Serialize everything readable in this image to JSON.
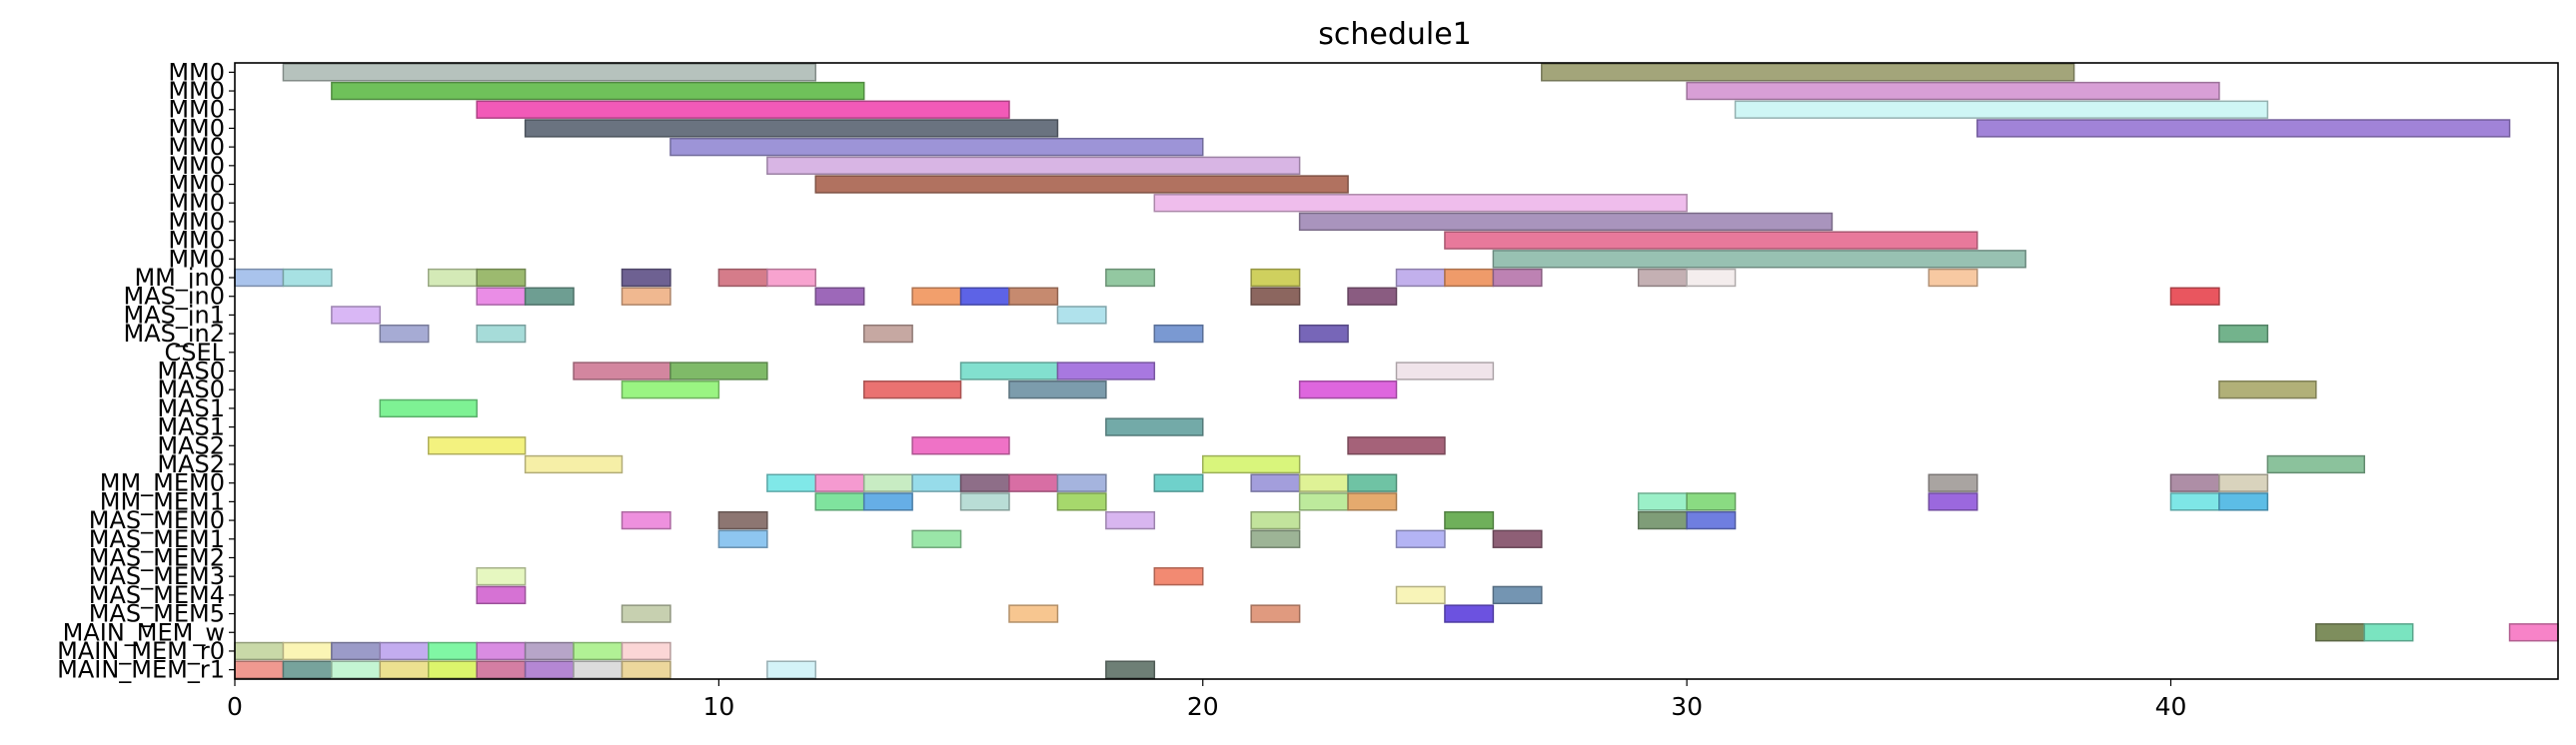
{
  "chart_data": {
    "type": "gantt",
    "title": "schedule1",
    "xlabel": "",
    "ylabel": "",
    "xlim": [
      0,
      48
    ],
    "x_ticks": [
      0,
      10,
      20,
      30,
      40
    ],
    "grid": false,
    "rows": [
      "MM0",
      "MM0",
      "MM0",
      "MM0",
      "MM0",
      "MM0",
      "MM0",
      "MM0",
      "MM0",
      "MM0",
      "MM0",
      "MM_in0",
      "MAS_in0",
      "MAS_in1",
      "MAS_in2",
      "CSEL",
      "MAS0",
      "MAS0",
      "MAS1",
      "MAS1",
      "MAS2",
      "MAS2",
      "MM_MEM0",
      "MM_MEM1",
      "MAS_MEM0",
      "MAS_MEM1",
      "MAS_MEM2",
      "MAS_MEM3",
      "MAS_MEM4",
      "MAS_MEM5",
      "MAIN_MEM_w",
      "MAIN_MEM_r0",
      "MAIN_MEM_r1"
    ],
    "tasks": [
      {
        "row": 0,
        "start": 1,
        "end": 12,
        "color": "#b6c2bd"
      },
      {
        "row": 0,
        "start": 27,
        "end": 38,
        "color": "#a3a57a"
      },
      {
        "row": 1,
        "start": 2,
        "end": 13,
        "color": "#6fc15a"
      },
      {
        "row": 1,
        "start": 30,
        "end": 41,
        "color": "#d89fd6"
      },
      {
        "row": 2,
        "start": 5,
        "end": 16,
        "color": "#f25ab8"
      },
      {
        "row": 2,
        "start": 31,
        "end": 42,
        "color": "#cff6f5"
      },
      {
        "row": 3,
        "start": 6,
        "end": 17,
        "color": "#6a7380"
      },
      {
        "row": 3,
        "start": 36,
        "end": 47,
        "color": "#a183d8"
      },
      {
        "row": 4,
        "start": 9,
        "end": 20,
        "color": "#9d94d7"
      },
      {
        "row": 5,
        "start": 11,
        "end": 22,
        "color": "#d8b5e4"
      },
      {
        "row": 6,
        "start": 12,
        "end": 23,
        "color": "#b17260"
      },
      {
        "row": 7,
        "start": 19,
        "end": 30,
        "color": "#efbdec"
      },
      {
        "row": 8,
        "start": 22,
        "end": 33,
        "color": "#a994bd"
      },
      {
        "row": 9,
        "start": 25,
        "end": 36,
        "color": "#e8799b"
      },
      {
        "row": 10,
        "start": 26,
        "end": 37,
        "color": "#98c1b2"
      },
      {
        "row": 11,
        "start": 0,
        "end": 1,
        "color": "#a9c3ec"
      },
      {
        "row": 11,
        "start": 1,
        "end": 2,
        "color": "#a7e1e3"
      },
      {
        "row": 11,
        "start": 4,
        "end": 5,
        "color": "#d4eab7"
      },
      {
        "row": 11,
        "start": 5,
        "end": 6,
        "color": "#9cba6f"
      },
      {
        "row": 11,
        "start": 8,
        "end": 9,
        "color": "#6e6192"
      },
      {
        "row": 11,
        "start": 10,
        "end": 11,
        "color": "#d57c8a"
      },
      {
        "row": 11,
        "start": 11,
        "end": 12,
        "color": "#f7a3cf"
      },
      {
        "row": 11,
        "start": 18,
        "end": 19,
        "color": "#93c8a1"
      },
      {
        "row": 11,
        "start": 21,
        "end": 22,
        "color": "#cfd05e"
      },
      {
        "row": 11,
        "start": 24,
        "end": 25,
        "color": "#c2b0ec"
      },
      {
        "row": 11,
        "start": 25,
        "end": 26,
        "color": "#ef9b6a"
      },
      {
        "row": 11,
        "start": 26,
        "end": 27,
        "color": "#bd82b3"
      },
      {
        "row": 11,
        "start": 29,
        "end": 30,
        "color": "#c4b0b3"
      },
      {
        "row": 11,
        "start": 30,
        "end": 31,
        "color": "#f4eded"
      },
      {
        "row": 11,
        "start": 35,
        "end": 36,
        "color": "#f7c9a2"
      },
      {
        "row": 12,
        "start": 5,
        "end": 6,
        "color": "#ea8de6"
      },
      {
        "row": 12,
        "start": 6,
        "end": 7,
        "color": "#6e9e92"
      },
      {
        "row": 12,
        "start": 8,
        "end": 9,
        "color": "#f0b890"
      },
      {
        "row": 12,
        "start": 12,
        "end": 13,
        "color": "#9d68b9"
      },
      {
        "row": 12,
        "start": 14,
        "end": 15,
        "color": "#f29f6c"
      },
      {
        "row": 12,
        "start": 15,
        "end": 16,
        "color": "#5d63e6"
      },
      {
        "row": 12,
        "start": 16,
        "end": 17,
        "color": "#c68a6f"
      },
      {
        "row": 12,
        "start": 21,
        "end": 22,
        "color": "#8c665f"
      },
      {
        "row": 12,
        "start": 23,
        "end": 24,
        "color": "#8a5c81"
      },
      {
        "row": 12,
        "start": 40,
        "end": 41,
        "color": "#e9565f"
      },
      {
        "row": 13,
        "start": 2,
        "end": 3,
        "color": "#d9b7f5"
      },
      {
        "row": 13,
        "start": 17,
        "end": 18,
        "color": "#b0e2ec"
      },
      {
        "row": 14,
        "start": 3,
        "end": 4,
        "color": "#a6abd4"
      },
      {
        "row": 14,
        "start": 5,
        "end": 6,
        "color": "#a6dcd9"
      },
      {
        "row": 14,
        "start": 13,
        "end": 14,
        "color": "#c6a8a2"
      },
      {
        "row": 14,
        "start": 19,
        "end": 20,
        "color": "#7a99d2"
      },
      {
        "row": 14,
        "start": 22,
        "end": 23,
        "color": "#7766b8"
      },
      {
        "row": 14,
        "start": 41,
        "end": 42,
        "color": "#73b38c"
      },
      {
        "row": 16,
        "start": 7,
        "end": 9,
        "color": "#d3869f"
      },
      {
        "row": 16,
        "start": 9,
        "end": 11,
        "color": "#7fba68"
      },
      {
        "row": 16,
        "start": 15,
        "end": 17,
        "color": "#82e0cf"
      },
      {
        "row": 16,
        "start": 17,
        "end": 19,
        "color": "#a878e0"
      },
      {
        "row": 16,
        "start": 24,
        "end": 26,
        "color": "#f0e4ea"
      },
      {
        "row": 17,
        "start": 8,
        "end": 10,
        "color": "#9af482"
      },
      {
        "row": 17,
        "start": 13,
        "end": 15,
        "color": "#ea7271"
      },
      {
        "row": 17,
        "start": 16,
        "end": 18,
        "color": "#7c9cac"
      },
      {
        "row": 17,
        "start": 22,
        "end": 24,
        "color": "#de66de"
      },
      {
        "row": 17,
        "start": 41,
        "end": 43,
        "color": "#b1b078"
      },
      {
        "row": 18,
        "start": 3,
        "end": 5,
        "color": "#7ef294"
      },
      {
        "row": 19,
        "start": 18,
        "end": 20,
        "color": "#73aaa8"
      },
      {
        "row": 20,
        "start": 4,
        "end": 6,
        "color": "#f3f27f"
      },
      {
        "row": 20,
        "start": 14,
        "end": 16,
        "color": "#ef72c6"
      },
      {
        "row": 20,
        "start": 23,
        "end": 25,
        "color": "#a56279"
      },
      {
        "row": 21,
        "start": 6,
        "end": 8,
        "color": "#f6efa7"
      },
      {
        "row": 21,
        "start": 20,
        "end": 22,
        "color": "#d9f57c"
      },
      {
        "row": 21,
        "start": 42,
        "end": 44,
        "color": "#8bc29c"
      },
      {
        "row": 22,
        "start": 11,
        "end": 12,
        "color": "#80e8e8"
      },
      {
        "row": 22,
        "start": 12,
        "end": 13,
        "color": "#f59ad0"
      },
      {
        "row": 22,
        "start": 13,
        "end": 14,
        "color": "#c8ecc3"
      },
      {
        "row": 22,
        "start": 14,
        "end": 15,
        "color": "#97dcea"
      },
      {
        "row": 22,
        "start": 15,
        "end": 16,
        "color": "#8e6e88"
      },
      {
        "row": 22,
        "start": 16,
        "end": 17,
        "color": "#d86ea4"
      },
      {
        "row": 22,
        "start": 17,
        "end": 18,
        "color": "#a5b4de"
      },
      {
        "row": 22,
        "start": 19,
        "end": 20,
        "color": "#6fd1cb"
      },
      {
        "row": 22,
        "start": 21,
        "end": 22,
        "color": "#a39edc"
      },
      {
        "row": 22,
        "start": 22,
        "end": 23,
        "color": "#dff296"
      },
      {
        "row": 22,
        "start": 23,
        "end": 24,
        "color": "#6fc3a4"
      },
      {
        "row": 22,
        "start": 35,
        "end": 36,
        "color": "#a9a4a1"
      },
      {
        "row": 22,
        "start": 40,
        "end": 41,
        "color": "#ae8ea6"
      },
      {
        "row": 22,
        "start": 41,
        "end": 42,
        "color": "#d9d3bd"
      },
      {
        "row": 23,
        "start": 12,
        "end": 13,
        "color": "#7fe39e"
      },
      {
        "row": 23,
        "start": 13,
        "end": 14,
        "color": "#66aee6"
      },
      {
        "row": 23,
        "start": 15,
        "end": 16,
        "color": "#b9ddd6"
      },
      {
        "row": 23,
        "start": 17,
        "end": 18,
        "color": "#a6d86c"
      },
      {
        "row": 23,
        "start": 22,
        "end": 23,
        "color": "#bdea9c"
      },
      {
        "row": 23,
        "start": 23,
        "end": 24,
        "color": "#e5aa6e"
      },
      {
        "row": 23,
        "start": 29,
        "end": 30,
        "color": "#9bf0c8"
      },
      {
        "row": 23,
        "start": 30,
        "end": 31,
        "color": "#8adb82"
      },
      {
        "row": 23,
        "start": 35,
        "end": 36,
        "color": "#9b68de"
      },
      {
        "row": 23,
        "start": 40,
        "end": 41,
        "color": "#7ee6e6"
      },
      {
        "row": 23,
        "start": 41,
        "end": 42,
        "color": "#5cbde6"
      },
      {
        "row": 24,
        "start": 8,
        "end": 9,
        "color": "#ee90de"
      },
      {
        "row": 24,
        "start": 10,
        "end": 11,
        "color": "#8d7672"
      },
      {
        "row": 24,
        "start": 18,
        "end": 19,
        "color": "#d8b6f0"
      },
      {
        "row": 24,
        "start": 21,
        "end": 22,
        "color": "#c2e39c"
      },
      {
        "row": 24,
        "start": 25,
        "end": 26,
        "color": "#6fb05a"
      },
      {
        "row": 24,
        "start": 29,
        "end": 30,
        "color": "#7f9d78"
      },
      {
        "row": 24,
        "start": 30,
        "end": 31,
        "color": "#6f7ee0"
      },
      {
        "row": 25,
        "start": 10,
        "end": 11,
        "color": "#8ec6f0"
      },
      {
        "row": 25,
        "start": 14,
        "end": 15,
        "color": "#9ae6a8"
      },
      {
        "row": 25,
        "start": 21,
        "end": 22,
        "color": "#9db496"
      },
      {
        "row": 25,
        "start": 24,
        "end": 25,
        "color": "#b4b4f4"
      },
      {
        "row": 25,
        "start": 26,
        "end": 27,
        "color": "#8e5f76"
      },
      {
        "row": 27,
        "start": 5,
        "end": 6,
        "color": "#e6f7c0"
      },
      {
        "row": 27,
        "start": 19,
        "end": 20,
        "color": "#f28a72"
      },
      {
        "row": 28,
        "start": 5,
        "end": 6,
        "color": "#d672d4"
      },
      {
        "row": 28,
        "start": 24,
        "end": 25,
        "color": "#f8f4b8"
      },
      {
        "row": 28,
        "start": 26,
        "end": 27,
        "color": "#7495b2"
      },
      {
        "row": 29,
        "start": 8,
        "end": 9,
        "color": "#c7d0b0"
      },
      {
        "row": 29,
        "start": 16,
        "end": 17,
        "color": "#f7c690"
      },
      {
        "row": 29,
        "start": 21,
        "end": 22,
        "color": "#e09a7f"
      },
      {
        "row": 29,
        "start": 25,
        "end": 26,
        "color": "#6c52e0"
      },
      {
        "row": 30,
        "start": 43,
        "end": 44,
        "color": "#7e8e5d"
      },
      {
        "row": 30,
        "start": 44,
        "end": 45,
        "color": "#7ae4c0"
      },
      {
        "row": 30,
        "start": 47,
        "end": 48,
        "color": "#f783c8"
      },
      {
        "row": 31,
        "start": 0,
        "end": 1,
        "color": "#c9d9a8"
      },
      {
        "row": 31,
        "start": 1,
        "end": 2,
        "color": "#fbf5b5"
      },
      {
        "row": 31,
        "start": 2,
        "end": 3,
        "color": "#9b9bc8"
      },
      {
        "row": 31,
        "start": 3,
        "end": 4,
        "color": "#c3acef"
      },
      {
        "row": 31,
        "start": 4,
        "end": 5,
        "color": "#80f7a4"
      },
      {
        "row": 31,
        "start": 5,
        "end": 6,
        "color": "#d98ce2"
      },
      {
        "row": 31,
        "start": 6,
        "end": 7,
        "color": "#b7a5c8"
      },
      {
        "row": 31,
        "start": 7,
        "end": 8,
        "color": "#b1f195"
      },
      {
        "row": 31,
        "start": 8,
        "end": 9,
        "color": "#fbd6d6"
      },
      {
        "row": 32,
        "start": 0,
        "end": 1,
        "color": "#f09990"
      },
      {
        "row": 32,
        "start": 1,
        "end": 2,
        "color": "#77a39c"
      },
      {
        "row": 32,
        "start": 2,
        "end": 3,
        "color": "#c4f5d3"
      },
      {
        "row": 32,
        "start": 3,
        "end": 4,
        "color": "#ece190"
      },
      {
        "row": 32,
        "start": 4,
        "end": 5,
        "color": "#dcf56c"
      },
      {
        "row": 32,
        "start": 5,
        "end": 6,
        "color": "#d47ea3"
      },
      {
        "row": 32,
        "start": 6,
        "end": 7,
        "color": "#b487d4"
      },
      {
        "row": 32,
        "start": 7,
        "end": 8,
        "color": "#dcdcdc"
      },
      {
        "row": 32,
        "start": 8,
        "end": 9,
        "color": "#ecd79c"
      },
      {
        "row": 32,
        "start": 11,
        "end": 12,
        "color": "#d4f3f8"
      },
      {
        "row": 32,
        "start": 18,
        "end": 19,
        "color": "#6e7f76"
      }
    ]
  }
}
